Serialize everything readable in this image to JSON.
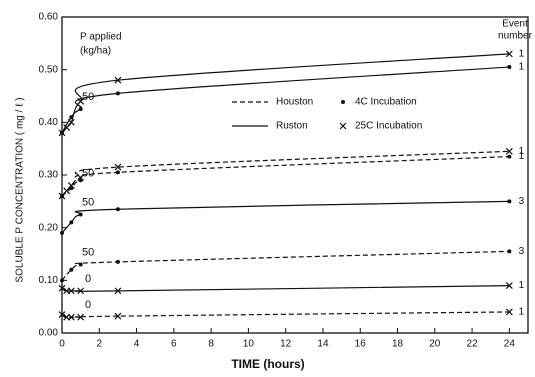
{
  "chart_data": {
    "type": "line",
    "xlabel": "TIME (hours)",
    "ylabel": "SOLUBLE   P   CONCENTRATION ( mg / ℓ )",
    "annotations": {
      "p_applied": "P applied",
      "units": "(kg/ha)",
      "event_title": "Event",
      "event_title2": "number"
    },
    "legend": [
      {
        "label": "Houston",
        "line": "dashed"
      },
      {
        "label": "Ruston",
        "line": "solid"
      },
      {
        "label": "4C Incubation",
        "marker": "dot"
      },
      {
        "label": "25C Incubation",
        "marker": "x"
      }
    ],
    "xlim": [
      0,
      25
    ],
    "xticks": [
      0,
      2,
      4,
      6,
      8,
      10,
      12,
      14,
      16,
      18,
      20,
      22,
      24
    ],
    "ylim": [
      0,
      0.6
    ],
    "yticks": [
      {
        "value": 0,
        "label": "0.00"
      },
      {
        "value": 0.1,
        "label": "0.10"
      },
      {
        "value": 0.2,
        "label": "0.20"
      },
      {
        "value": 0.3,
        "label": "0.30"
      },
      {
        "value": 0.4,
        "label": "0.40"
      },
      {
        "value": 0.5,
        "label": "0.50"
      },
      {
        "value": 0.6,
        "label": "0.60"
      }
    ],
    "color": "#111111",
    "series": [
      {
        "line": "solid",
        "marker": "x",
        "event": "1",
        "x": [
          0,
          0.25,
          0.5,
          1,
          3,
          24
        ],
        "values": [
          0.38,
          0.39,
          0.4,
          0.44,
          0.48,
          0.53
        ]
      },
      {
        "line": "solid",
        "marker": "dot",
        "label": "50",
        "event": "1",
        "x": [
          0,
          0.5,
          1,
          3,
          24
        ],
        "values": [
          0.38,
          0.41,
          0.425,
          0.455,
          0.505
        ]
      },
      {
        "line": "dashed",
        "marker": "x",
        "label": "50",
        "event": "1",
        "x": [
          0,
          0.25,
          0.5,
          1,
          3,
          24
        ],
        "values": [
          0.26,
          0.27,
          0.28,
          0.295,
          0.315,
          0.345
        ]
      },
      {
        "line": "dashed",
        "marker": "dot",
        "event": "1",
        "x": [
          0,
          0.5,
          1,
          3,
          24
        ],
        "values": [
          0.26,
          0.275,
          0.29,
          0.305,
          0.335
        ]
      },
      {
        "line": "solid",
        "marker": "dot",
        "label": "50",
        "event": "3",
        "x": [
          0,
          0.5,
          1,
          3,
          24
        ],
        "values": [
          0.19,
          0.21,
          0.225,
          0.235,
          0.25
        ]
      },
      {
        "line": "dashed",
        "marker": "dot",
        "label": "50",
        "event": "3",
        "x": [
          0,
          0.5,
          1,
          3,
          24
        ],
        "values": [
          0.1,
          0.12,
          0.13,
          0.135,
          0.155
        ]
      },
      {
        "line": "solid",
        "marker": "x",
        "label": "0",
        "event": "1",
        "x": [
          0,
          0.25,
          0.5,
          1,
          3,
          24
        ],
        "values": [
          0.085,
          0.08,
          0.08,
          0.08,
          0.08,
          0.09
        ]
      },
      {
        "line": "dashed",
        "marker": "x",
        "label": "0",
        "event": "1",
        "x": [
          0,
          0.25,
          0.5,
          1,
          3,
          24
        ],
        "values": [
          0.035,
          0.03,
          0.03,
          0.03,
          0.032,
          0.04
        ]
      }
    ]
  }
}
